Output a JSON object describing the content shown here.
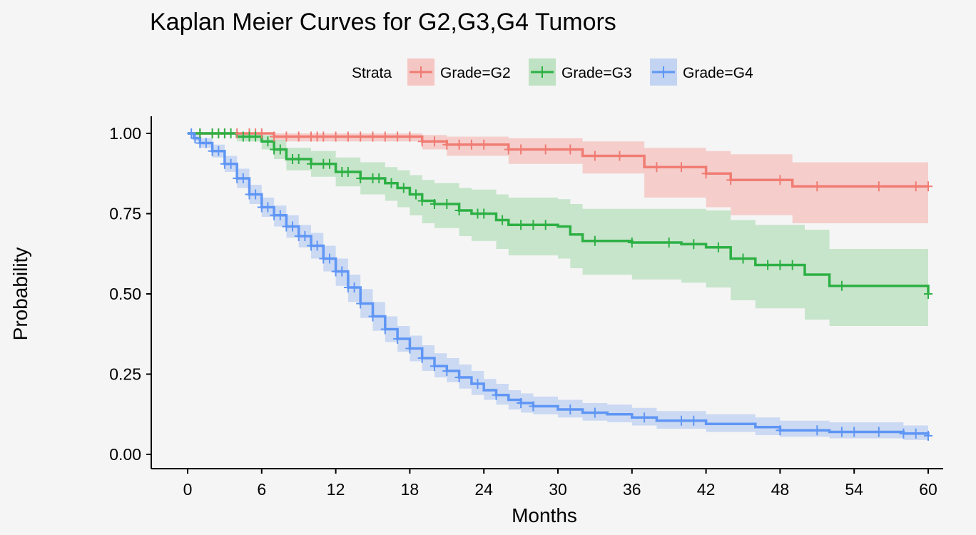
{
  "chart_data": {
    "type": "line",
    "title": "Kaplan Meier Curves for G2,G3,G4 Tumors",
    "xlabel": "Months",
    "ylabel": "Probability",
    "xlim": [
      0,
      60
    ],
    "ylim": [
      0,
      1
    ],
    "xticks": [
      "0",
      "6",
      "12",
      "18",
      "24",
      "30",
      "36",
      "42",
      "48",
      "54",
      "60"
    ],
    "yticks": [
      "0.00",
      "0.25",
      "0.50",
      "0.75",
      "1.00"
    ],
    "grid": false,
    "legend": {
      "title": "Strata",
      "position": "top"
    },
    "series": [
      {
        "name": "Grade=G2",
        "color": "#F07C73",
        "band_color": "#F4C7C4",
        "steps": [
          [
            0,
            1.0
          ],
          [
            7,
            0.99
          ],
          [
            19,
            0.975
          ],
          [
            21,
            0.965
          ],
          [
            26,
            0.95
          ],
          [
            32,
            0.93
          ],
          [
            37,
            0.895
          ],
          [
            42,
            0.875
          ],
          [
            44,
            0.855
          ],
          [
            49,
            0.835
          ],
          [
            60,
            0.835
          ]
        ],
        "lower": [
          [
            0,
            1.0
          ],
          [
            7,
            0.975
          ],
          [
            19,
            0.95
          ],
          [
            21,
            0.93
          ],
          [
            26,
            0.905
          ],
          [
            32,
            0.875
          ],
          [
            37,
            0.8
          ],
          [
            42,
            0.77
          ],
          [
            44,
            0.745
          ],
          [
            49,
            0.72
          ],
          [
            60,
            0.715
          ]
        ],
        "upper": [
          [
            0,
            1.0
          ],
          [
            7,
            1.0
          ],
          [
            19,
            0.995
          ],
          [
            21,
            0.99
          ],
          [
            26,
            0.985
          ],
          [
            32,
            0.975
          ],
          [
            37,
            0.955
          ],
          [
            42,
            0.945
          ],
          [
            44,
            0.935
          ],
          [
            49,
            0.91
          ],
          [
            60,
            0.91
          ]
        ],
        "censor_x": [
          1,
          2,
          2.5,
          3,
          4,
          5,
          5.5,
          6,
          7,
          8,
          9,
          10,
          10.5,
          11,
          12,
          13,
          14,
          15,
          16,
          17,
          18,
          19,
          20,
          21,
          22,
          23,
          24,
          26,
          27,
          29,
          31,
          33,
          35,
          38,
          40,
          42,
          44,
          48,
          51,
          56,
          59,
          60
        ]
      },
      {
        "name": "Grade=G3",
        "color": "#2DB044",
        "band_color": "#BEE2C3",
        "steps": [
          [
            0,
            1.0
          ],
          [
            4,
            0.99
          ],
          [
            6,
            0.975
          ],
          [
            7,
            0.95
          ],
          [
            8,
            0.92
          ],
          [
            10,
            0.905
          ],
          [
            12,
            0.88
          ],
          [
            14,
            0.86
          ],
          [
            16,
            0.845
          ],
          [
            17,
            0.83
          ],
          [
            18,
            0.81
          ],
          [
            19,
            0.79
          ],
          [
            20,
            0.78
          ],
          [
            22,
            0.76
          ],
          [
            23,
            0.75
          ],
          [
            25,
            0.73
          ],
          [
            26,
            0.715
          ],
          [
            30,
            0.71
          ],
          [
            31,
            0.685
          ],
          [
            32,
            0.665
          ],
          [
            36,
            0.66
          ],
          [
            40,
            0.655
          ],
          [
            42,
            0.645
          ],
          [
            44,
            0.61
          ],
          [
            46,
            0.59
          ],
          [
            50,
            0.56
          ],
          [
            52,
            0.525
          ],
          [
            60,
            0.5
          ]
        ],
        "lower": [
          [
            0,
            1.0
          ],
          [
            4,
            0.975
          ],
          [
            6,
            0.95
          ],
          [
            7,
            0.92
          ],
          [
            8,
            0.885
          ],
          [
            10,
            0.865
          ],
          [
            12,
            0.835
          ],
          [
            14,
            0.81
          ],
          [
            16,
            0.79
          ],
          [
            17,
            0.77
          ],
          [
            18,
            0.745
          ],
          [
            19,
            0.72
          ],
          [
            20,
            0.705
          ],
          [
            22,
            0.68
          ],
          [
            23,
            0.665
          ],
          [
            25,
            0.64
          ],
          [
            26,
            0.62
          ],
          [
            30,
            0.61
          ],
          [
            31,
            0.58
          ],
          [
            32,
            0.56
          ],
          [
            36,
            0.545
          ],
          [
            40,
            0.535
          ],
          [
            42,
            0.52
          ],
          [
            44,
            0.48
          ],
          [
            46,
            0.455
          ],
          [
            50,
            0.42
          ],
          [
            52,
            0.4
          ],
          [
            60,
            0.375
          ]
        ],
        "upper": [
          [
            0,
            1.0
          ],
          [
            4,
            1.0
          ],
          [
            6,
            0.995
          ],
          [
            7,
            0.98
          ],
          [
            8,
            0.955
          ],
          [
            10,
            0.945
          ],
          [
            12,
            0.925
          ],
          [
            14,
            0.91
          ],
          [
            16,
            0.895
          ],
          [
            17,
            0.885
          ],
          [
            18,
            0.87
          ],
          [
            19,
            0.855
          ],
          [
            20,
            0.845
          ],
          [
            22,
            0.83
          ],
          [
            23,
            0.825
          ],
          [
            25,
            0.81
          ],
          [
            26,
            0.8
          ],
          [
            30,
            0.795
          ],
          [
            31,
            0.78
          ],
          [
            32,
            0.765
          ],
          [
            36,
            0.765
          ],
          [
            40,
            0.765
          ],
          [
            42,
            0.76
          ],
          [
            44,
            0.73
          ],
          [
            46,
            0.715
          ],
          [
            50,
            0.7
          ],
          [
            52,
            0.64
          ],
          [
            60,
            0.615
          ]
        ],
        "censor_x": [
          1,
          2,
          2.5,
          3,
          3.5,
          4.5,
          5,
          5.5,
          6.5,
          7,
          7.5,
          8.5,
          9,
          10,
          11,
          11.5,
          12.5,
          13,
          14,
          15,
          15.5,
          16.5,
          17.5,
          18.5,
          19,
          20,
          21,
          22,
          23.5,
          24,
          25.5,
          27,
          28,
          29,
          33,
          36,
          39,
          41,
          43,
          45,
          47,
          48,
          49,
          53,
          60
        ]
      },
      {
        "name": "Grade=G4",
        "color": "#5F96F5",
        "band_color": "#C3D4F2",
        "steps": [
          [
            0,
            1.0
          ],
          [
            0.5,
            0.985
          ],
          [
            1,
            0.97
          ],
          [
            2,
            0.945
          ],
          [
            3,
            0.905
          ],
          [
            4,
            0.86
          ],
          [
            5,
            0.81
          ],
          [
            6,
            0.77
          ],
          [
            7,
            0.745
          ],
          [
            8,
            0.71
          ],
          [
            9,
            0.68
          ],
          [
            10,
            0.65
          ],
          [
            11,
            0.61
          ],
          [
            12,
            0.57
          ],
          [
            13,
            0.52
          ],
          [
            14,
            0.47
          ],
          [
            15,
            0.43
          ],
          [
            16,
            0.39
          ],
          [
            17,
            0.36
          ],
          [
            18,
            0.33
          ],
          [
            19,
            0.3
          ],
          [
            20,
            0.275
          ],
          [
            21,
            0.26
          ],
          [
            22,
            0.24
          ],
          [
            23,
            0.22
          ],
          [
            24,
            0.2
          ],
          [
            25,
            0.185
          ],
          [
            26,
            0.17
          ],
          [
            27,
            0.16
          ],
          [
            28,
            0.15
          ],
          [
            30,
            0.14
          ],
          [
            32,
            0.13
          ],
          [
            34,
            0.125
          ],
          [
            36,
            0.115
          ],
          [
            38,
            0.105
          ],
          [
            42,
            0.095
          ],
          [
            46,
            0.085
          ],
          [
            48,
            0.075
          ],
          [
            52,
            0.07
          ],
          [
            58,
            0.065
          ],
          [
            60,
            0.058
          ]
        ],
        "lower": [
          [
            0,
            1.0
          ],
          [
            0.5,
            0.975
          ],
          [
            1,
            0.955
          ],
          [
            2,
            0.925
          ],
          [
            3,
            0.88
          ],
          [
            4,
            0.83
          ],
          [
            5,
            0.78
          ],
          [
            6,
            0.74
          ],
          [
            7,
            0.71
          ],
          [
            8,
            0.675
          ],
          [
            9,
            0.645
          ],
          [
            10,
            0.61
          ],
          [
            11,
            0.57
          ],
          [
            12,
            0.525
          ],
          [
            13,
            0.475
          ],
          [
            14,
            0.425
          ],
          [
            15,
            0.385
          ],
          [
            16,
            0.35
          ],
          [
            17,
            0.32
          ],
          [
            18,
            0.29
          ],
          [
            19,
            0.26
          ],
          [
            20,
            0.24
          ],
          [
            21,
            0.225
          ],
          [
            22,
            0.205
          ],
          [
            23,
            0.185
          ],
          [
            24,
            0.17
          ],
          [
            25,
            0.155
          ],
          [
            26,
            0.14
          ],
          [
            27,
            0.13
          ],
          [
            28,
            0.125
          ],
          [
            30,
            0.115
          ],
          [
            32,
            0.105
          ],
          [
            34,
            0.1
          ],
          [
            36,
            0.09
          ],
          [
            38,
            0.08
          ],
          [
            42,
            0.07
          ],
          [
            46,
            0.06
          ],
          [
            48,
            0.055
          ],
          [
            52,
            0.05
          ],
          [
            58,
            0.045
          ],
          [
            60,
            0.038
          ]
        ],
        "upper": [
          [
            0,
            1.0
          ],
          [
            0.5,
            0.995
          ],
          [
            1,
            0.985
          ],
          [
            2,
            0.965
          ],
          [
            3,
            0.93
          ],
          [
            4,
            0.89
          ],
          [
            5,
            0.84
          ],
          [
            6,
            0.8
          ],
          [
            7,
            0.775
          ],
          [
            8,
            0.745
          ],
          [
            9,
            0.715
          ],
          [
            10,
            0.69
          ],
          [
            11,
            0.65
          ],
          [
            12,
            0.61
          ],
          [
            13,
            0.56
          ],
          [
            14,
            0.515
          ],
          [
            15,
            0.475
          ],
          [
            16,
            0.43
          ],
          [
            17,
            0.4
          ],
          [
            18,
            0.37
          ],
          [
            19,
            0.34
          ],
          [
            20,
            0.315
          ],
          [
            21,
            0.3
          ],
          [
            22,
            0.28
          ],
          [
            23,
            0.26
          ],
          [
            24,
            0.235
          ],
          [
            25,
            0.22
          ],
          [
            26,
            0.2
          ],
          [
            27,
            0.19
          ],
          [
            28,
            0.18
          ],
          [
            30,
            0.17
          ],
          [
            32,
            0.16
          ],
          [
            34,
            0.155
          ],
          [
            36,
            0.145
          ],
          [
            38,
            0.135
          ],
          [
            42,
            0.125
          ],
          [
            46,
            0.115
          ],
          [
            48,
            0.105
          ],
          [
            52,
            0.1
          ],
          [
            58,
            0.09
          ],
          [
            60,
            0.085
          ]
        ],
        "censor_x": [
          0.3,
          0.6,
          1,
          1.5,
          2,
          2.5,
          3,
          3.5,
          4,
          4.5,
          5,
          5.5,
          6,
          6.5,
          7,
          7.5,
          8,
          8.5,
          9,
          9.5,
          10,
          10.5,
          11,
          11.5,
          12,
          12.5,
          13,
          13.5,
          14,
          15,
          16,
          17,
          18,
          19,
          20,
          21,
          22,
          23.5,
          25,
          27,
          28,
          31,
          33,
          37,
          40,
          41,
          48,
          51,
          53,
          54,
          56,
          58,
          59,
          60
        ]
      }
    ]
  }
}
